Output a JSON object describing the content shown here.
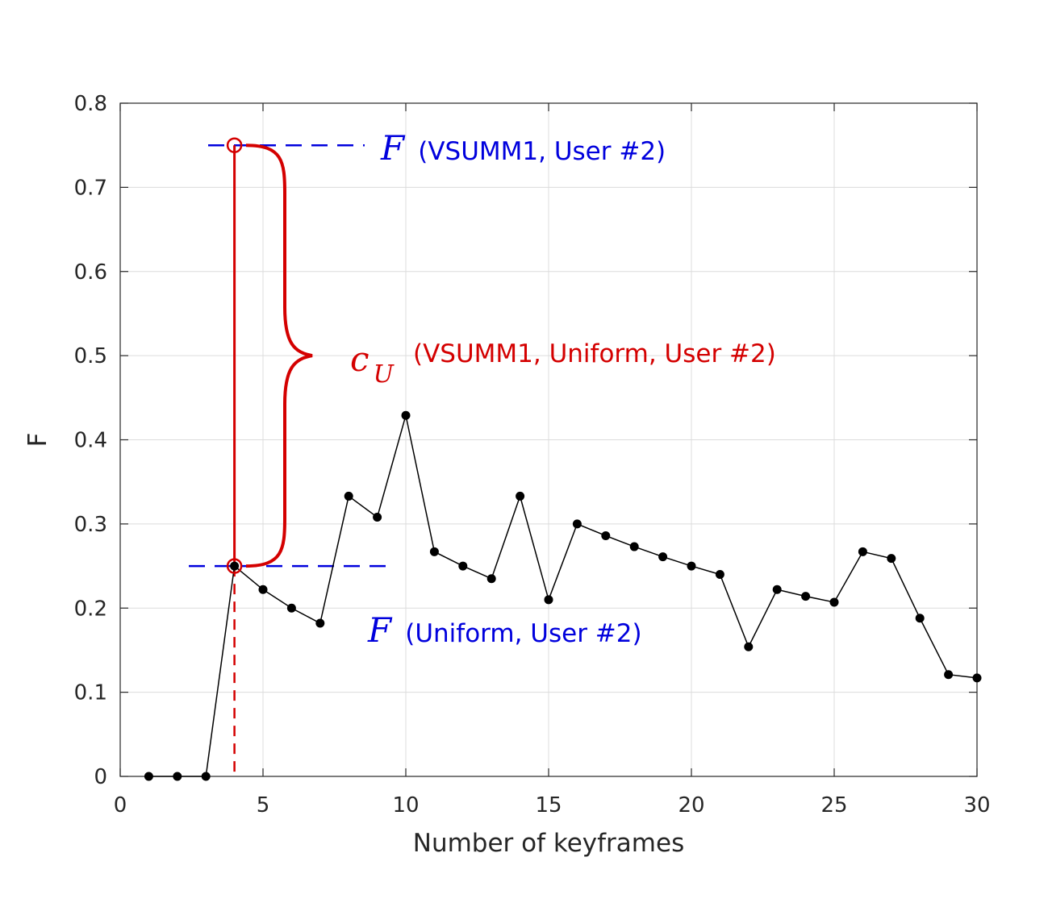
{
  "chart_data": {
    "type": "line",
    "xlabel": "Number of keyframes",
    "ylabel": "F",
    "xlim": [
      0,
      30
    ],
    "ylim": [
      0,
      0.8
    ],
    "xticks": [
      "0",
      "5",
      "10",
      "15",
      "20",
      "25",
      "30"
    ],
    "yticks": [
      "0",
      "0.1",
      "0.2",
      "0.3",
      "0.4",
      "0.5",
      "0.6",
      "0.7",
      "0.8"
    ],
    "grid": true,
    "x": [
      1,
      2,
      3,
      4,
      5,
      6,
      7,
      8,
      9,
      10,
      11,
      12,
      13,
      14,
      15,
      16,
      17,
      18,
      19,
      20,
      21,
      22,
      23,
      24,
      25,
      26,
      27,
      28,
      29,
      30
    ],
    "series": [
      {
        "values": [
          0,
          0,
          0,
          0.25,
          0.222,
          0.2,
          0.182,
          0.333,
          0.308,
          0.429,
          0.267,
          0.25,
          0.235,
          0.333,
          0.21,
          0.3,
          0.286,
          0.273,
          0.261,
          0.25,
          0.24,
          0.154,
          0.222,
          0.214,
          0.207,
          0.267,
          0.259,
          0.188,
          0.121,
          0.117
        ],
        "color": "#000000"
      }
    ],
    "annotations": {
      "highlight_x": 4,
      "vsumm_value": 0.75,
      "uniform_value": 0.25,
      "vsumm_symbol": "F",
      "vsumm_label": "(VSUMM1, User #2)",
      "uniform_symbol": "F",
      "uniform_label": "(Uniform, User #2)",
      "cu_symbol": "c",
      "cu_subscript": "U",
      "cu_label": "(VSUMM1, Uniform, User #2)",
      "blue_color": "#0000dd",
      "red_color": "#d40000"
    }
  }
}
